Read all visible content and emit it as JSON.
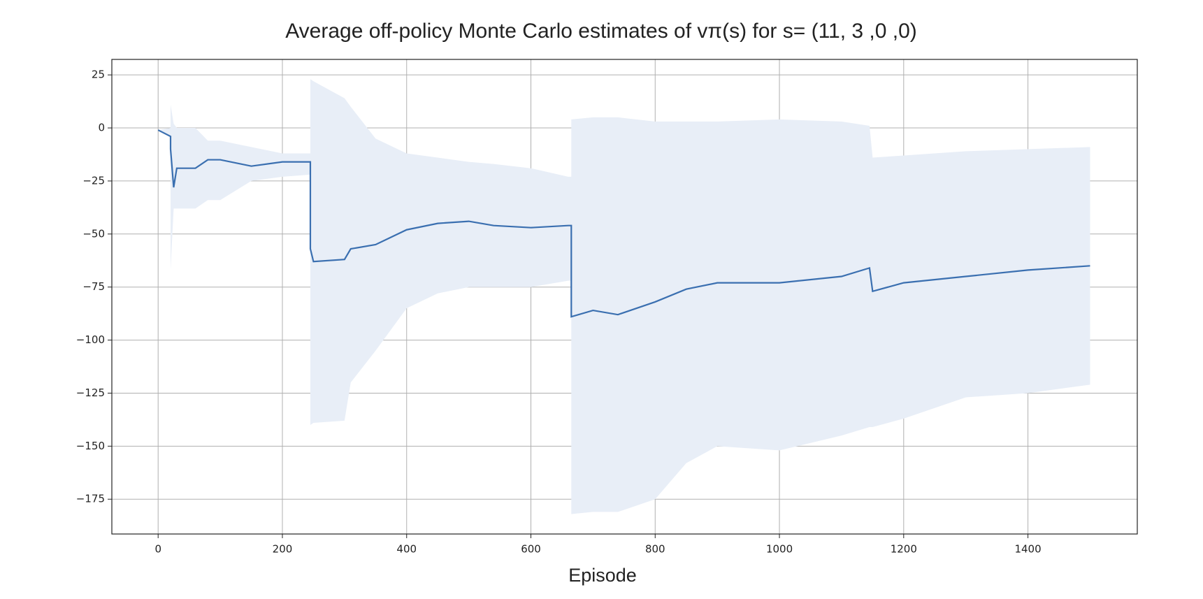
{
  "chart_data": {
    "type": "line",
    "title": "Average off-policy Monte Carlo estimates of vπ(s) for s= (11, 3 ,0 ,0)",
    "x_label": "Episode",
    "x": [
      0,
      20,
      20,
      25,
      30,
      60,
      80,
      100,
      150,
      200,
      245,
      245,
      250,
      300,
      310,
      350,
      400,
      450,
      500,
      540,
      600,
      660,
      665,
      665,
      700,
      740,
      800,
      850,
      900,
      1000,
      1100,
      1145,
      1150,
      1200,
      1300,
      1400,
      1500
    ],
    "series": [
      {
        "color": "#3a6fb0",
        "values": [
          -1,
          -4,
          -10,
          -28,
          -19,
          -19,
          -15,
          -15,
          -18,
          -16,
          -16,
          -57,
          -63,
          -62,
          -57,
          -55,
          -48,
          -45,
          -44,
          -46,
          -47,
          -46,
          -46,
          -89,
          -86,
          -88,
          -82,
          -76,
          -73,
          -73,
          -70,
          -66,
          -77,
          -73,
          -70,
          -67,
          -65
        ]
      }
    ],
    "band": {
      "color": "#e8eef7",
      "upper": [
        -1,
        0,
        11,
        2,
        0,
        0,
        -6,
        -6,
        -9,
        -12,
        -12,
        23,
        22,
        14,
        10,
        -5,
        -12,
        -14,
        -16,
        -17,
        -19,
        -23,
        -23,
        4,
        5,
        5,
        3,
        3,
        3,
        4,
        3,
        1,
        -14,
        -13,
        -11,
        -10,
        -9
      ],
      "lower": [
        -1,
        -4,
        -67,
        -38,
        -38,
        -38,
        -34,
        -34,
        -25,
        -23,
        -22,
        -140,
        -139,
        -138,
        -120,
        -105,
        -85,
        -78,
        -75,
        -75,
        -75,
        -72,
        -72,
        -182,
        -181,
        -181,
        -175,
        -158,
        -150,
        -152,
        -145,
        -141,
        -141,
        -137,
        -127,
        -125,
        -121
      ]
    },
    "xlim": [
      -74.5,
      1576
    ],
    "ylim": [
      -191.4,
      32.3
    ],
    "xticks": [
      0,
      200,
      400,
      600,
      800,
      1000,
      1200,
      1400
    ],
    "yticks": [
      25,
      0,
      {
        "value": -25,
        "label": "−25"
      },
      {
        "value": -50,
        "label": "−50"
      },
      {
        "value": -75,
        "label": "−75"
      },
      {
        "value": -100,
        "label": "−100"
      },
      {
        "value": -125,
        "label": "−125"
      },
      {
        "value": -150,
        "label": "−150"
      },
      {
        "value": -175,
        "label": "−175"
      }
    ],
    "grid": true
  }
}
